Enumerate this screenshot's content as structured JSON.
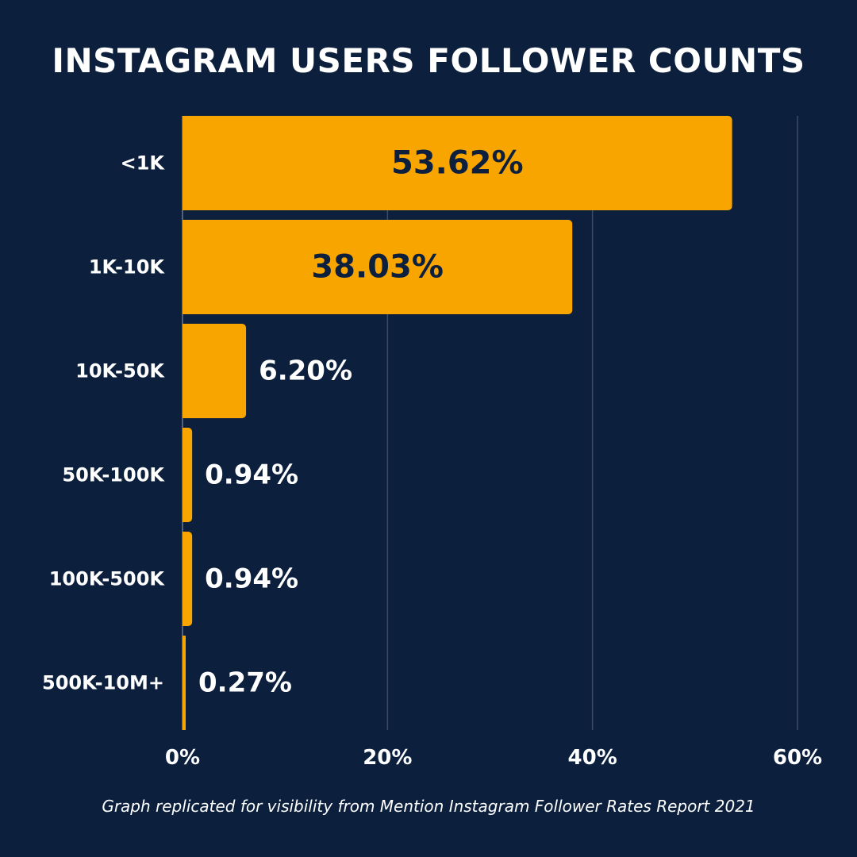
{
  "chart_data": {
    "type": "bar",
    "orientation": "horizontal",
    "title": "INSTAGRAM USERS FOLLOWER COUNTS",
    "categories": [
      "<1K",
      "1K-10K",
      "10K-50K",
      "50K-100K",
      "100K-500K",
      "500K-10M+"
    ],
    "values": [
      53.62,
      38.03,
      6.2,
      0.94,
      0.94,
      0.27
    ],
    "value_labels": [
      "53.62%",
      "38.03%",
      "6.20%",
      "0.94%",
      "0.94%",
      "0.27%"
    ],
    "xlim": [
      0,
      60
    ],
    "xticks": [
      0,
      20,
      40,
      60
    ],
    "xtick_labels": [
      "0%",
      "20%",
      "40%",
      "60%"
    ],
    "xlabel": "",
    "ylabel": "",
    "grid": "vertical",
    "legend": "none"
  },
  "caption": "Graph replicated for visibility from Mention Instagram Follower Rates Report 2021",
  "colors": {
    "background": "#0c203e",
    "bar": "#f8a500",
    "grid": "#3c4a64",
    "text_light": "#ffffff",
    "text_dark": "#0c203e"
  }
}
